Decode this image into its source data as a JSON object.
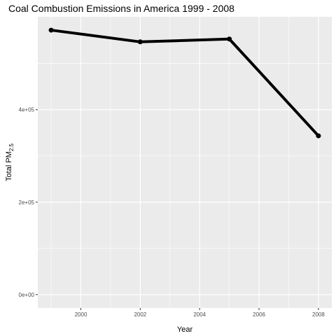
{
  "chart_data": {
    "type": "line",
    "title": "Coal Combustion Emissions in America 1999 - 2008",
    "xlabel": "Year",
    "ylabel": "Total PM",
    "ylabel_subscript": "2.5",
    "x": [
      1999,
      2002,
      2005,
      2008
    ],
    "series": [
      {
        "values": [
          572126,
          546789,
          552881,
          343432
        ]
      }
    ],
    "x_ticks": [
      2000,
      2002,
      2004,
      2006,
      2008
    ],
    "x_tick_labels": [
      "2000",
      "2002",
      "2004",
      "2006",
      "2008"
    ],
    "y_ticks": [
      0,
      200000,
      400000
    ],
    "y_tick_labels": [
      "0e+00",
      "2e+05",
      "4e+05"
    ],
    "xlim": [
      1998.55,
      2008.45
    ],
    "ylim": [
      -29000,
      601000
    ],
    "grid": true,
    "colors": {
      "panel": "#ebebeb",
      "grid": "#ffffff",
      "line": "#000000"
    }
  }
}
